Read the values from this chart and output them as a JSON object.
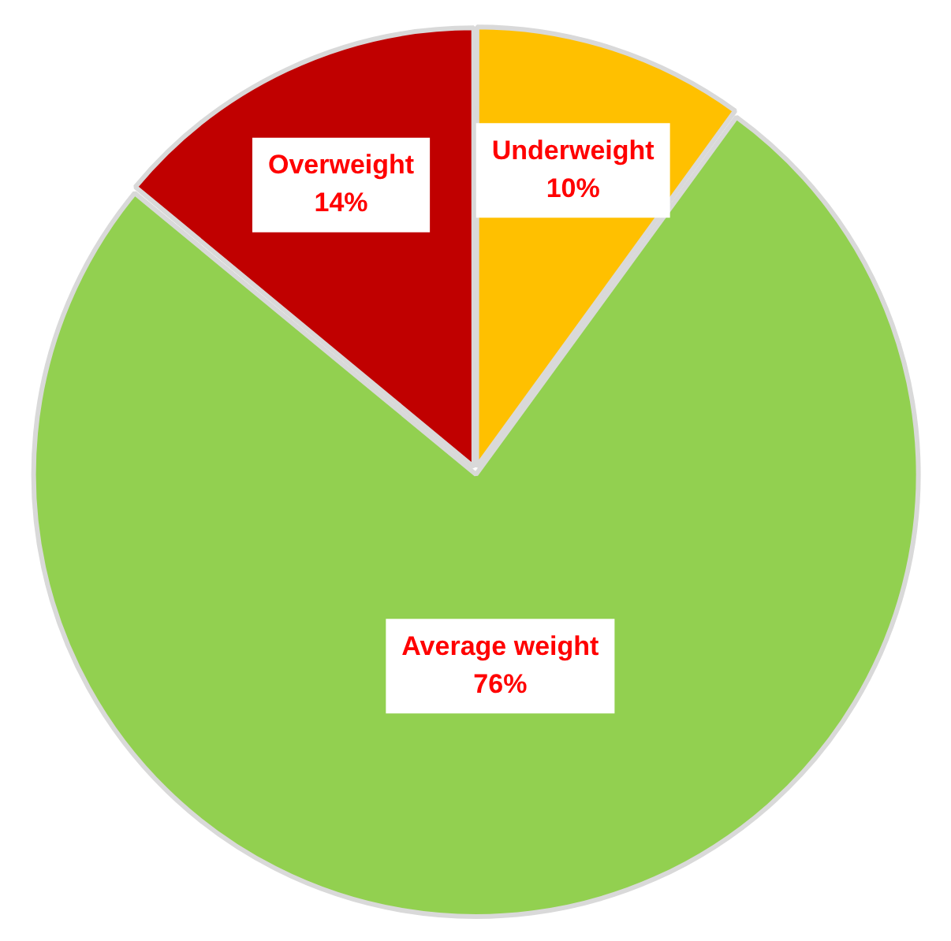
{
  "chart_data": {
    "type": "pie",
    "categories": [
      "Underweight",
      "Average weight",
      "Overweight"
    ],
    "values": [
      10,
      76,
      14
    ],
    "colors": [
      "#ffc000",
      "#92d050",
      "#c00000"
    ],
    "value_labels": [
      "10%",
      "76%",
      "14%"
    ],
    "legend": false
  }
}
